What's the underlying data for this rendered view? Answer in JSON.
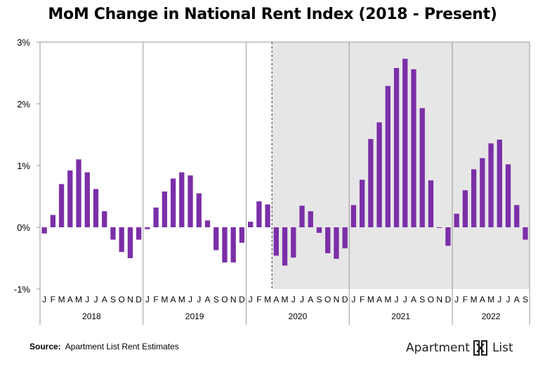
{
  "title": "MoM Change in National Rent Index (2018 - Present)",
  "source": {
    "label": "Source:",
    "text": "Apartment List Rent Estimates"
  },
  "brand": {
    "part1": "Apartment",
    "part2": "List"
  },
  "colors": {
    "bar": "#7b2fa8",
    "shade": "#e6e6e6",
    "grid": "#9a9a9a"
  },
  "chart_data": {
    "type": "bar",
    "title": "MoM Change in National Rent Index (2018 - Present)",
    "xlabel": "",
    "ylabel": "",
    "ylim": [
      -1,
      3
    ],
    "yticks": [
      "-1%",
      "0%",
      "1%",
      "2%",
      "3%"
    ],
    "years": [
      "2018",
      "2019",
      "2020",
      "2021",
      "2022"
    ],
    "months": [
      "J",
      "F",
      "M",
      "A",
      "M",
      "J",
      "J",
      "A",
      "S",
      "O",
      "N",
      "D"
    ],
    "shaded_from": "2020-04",
    "dashed_divider_after": "2020-03",
    "values": {
      "2018": [
        -0.1,
        0.2,
        0.7,
        0.92,
        1.1,
        0.89,
        0.62,
        0.26,
        -0.2,
        -0.4,
        -0.5,
        -0.2
      ],
      "2019": [
        -0.03,
        0.32,
        0.58,
        0.79,
        0.89,
        0.84,
        0.55,
        0.11,
        -0.37,
        -0.57,
        -0.57,
        -0.25
      ],
      "2020": [
        0.09,
        0.42,
        0.37,
        -0.46,
        -0.62,
        -0.49,
        0.35,
        0.26,
        -0.09,
        -0.42,
        -0.51,
        -0.34
      ],
      "2021": [
        0.36,
        0.77,
        1.43,
        1.7,
        2.29,
        2.58,
        2.73,
        2.56,
        1.93,
        0.76,
        0.0,
        -0.3
      ],
      "2022": [
        0.22,
        0.6,
        0.94,
        1.12,
        1.36,
        1.42,
        1.02,
        0.36,
        -0.2
      ]
    }
  }
}
